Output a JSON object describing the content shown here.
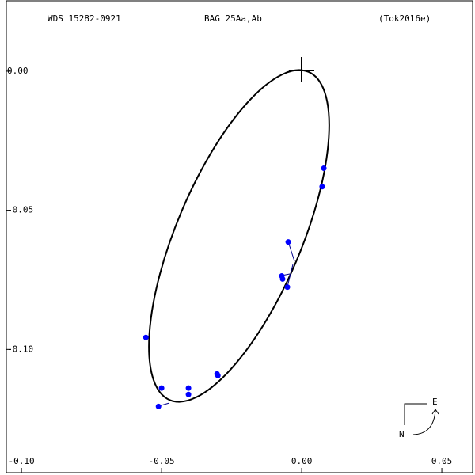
{
  "header": {
    "wds": "WDS 15282-0921",
    "discoverer": "BAG  25Aa,Ab",
    "reference": "(Tok2016e)"
  },
  "compass": {
    "east": "E",
    "north": "N"
  },
  "chart_data": {
    "type": "scatter",
    "color": "#0000ff",
    "x": [
      -0.0556,
      -0.05,
      -0.0511,
      -0.0404,
      -0.0404,
      -0.0302,
      -0.0299,
      -0.0071,
      -0.0068,
      -0.0051,
      -0.0048,
      0.0073,
      0.0079
    ],
    "values": [
      -0.0957,
      -0.1139,
      -0.1205,
      -0.1139,
      -0.1162,
      -0.1088,
      -0.1094,
      -0.0736,
      -0.0747,
      -0.0776,
      -0.0614,
      -0.0415,
      -0.0349
    ],
    "xlim": [
      -0.1054,
      0.061
    ],
    "ylim": [
      -0.1443,
      0.0253
    ],
    "xticks": [
      {
        "value": -0.1,
        "label": "-0.10"
      },
      {
        "value": -0.05,
        "label": "-0.05"
      },
      {
        "value": 0,
        "label": "0.00"
      },
      {
        "value": 0.05,
        "label": "0.05"
      }
    ],
    "yticks": [
      {
        "value": 0,
        "label": "0.00"
      },
      {
        "value": -0.05,
        "label": "-0.05"
      },
      {
        "value": -0.1,
        "label": "-0.10"
      }
    ]
  }
}
